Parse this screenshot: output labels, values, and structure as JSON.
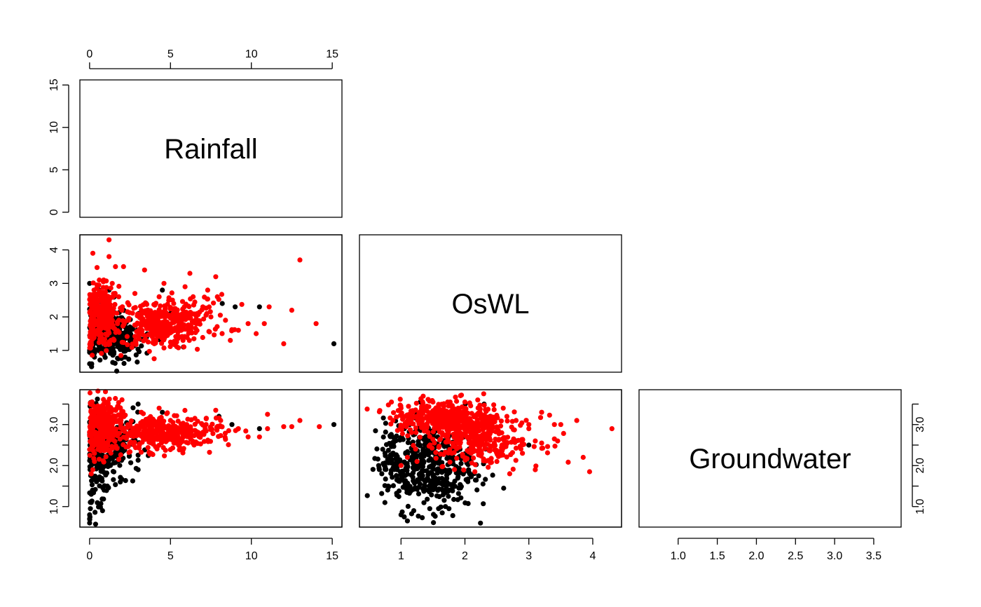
{
  "chart_data": {
    "type": "scatter",
    "variables": [
      "Rainfall",
      "OsWL",
      "Groundwater"
    ],
    "series_colors": {
      "black_group": "#000000",
      "red_group": "#ff0000"
    },
    "axes": {
      "Rainfall": {
        "lim": [
          -0.6,
          15.6
        ],
        "ticks": [
          0,
          5,
          10,
          15
        ],
        "tick_labels": [
          "0",
          "5",
          "10",
          "15"
        ]
      },
      "OsWL": {
        "lim": [
          0.35,
          4.45
        ],
        "ticks": [
          1,
          2,
          3,
          4
        ],
        "tick_labels": [
          "1",
          "2",
          "3",
          "4"
        ]
      },
      "Groundwater": {
        "lim": [
          0.5,
          3.85
        ],
        "ticks": [
          1.0,
          1.5,
          2.0,
          2.5,
          3.0,
          3.5
        ],
        "tick_labels": [
          "1.0",
          "1.5",
          "2.0",
          "2.5",
          "3.0",
          "3.5"
        ],
        "major_ticks": [
          1.0,
          2.0,
          3.0
        ],
        "major_tick_labels": [
          "1.0",
          "2.0",
          "3.0"
        ]
      }
    },
    "panels": [
      {
        "x": "Rainfall",
        "y": "OsWL",
        "points": [
          [
            0,
            0.6,
            "k"
          ],
          [
            0,
            1.0,
            "k"
          ],
          [
            0.1,
            1.4,
            "k"
          ],
          [
            0.2,
            1.8,
            "k"
          ],
          [
            0.3,
            2.2,
            "k"
          ],
          [
            0.1,
            2.6,
            "k"
          ],
          [
            0,
            3.0,
            "k"
          ],
          [
            0.5,
            1.2,
            "k"
          ],
          [
            0.8,
            1.0,
            "k"
          ],
          [
            1.0,
            1.3,
            "k"
          ],
          [
            1.2,
            1.6,
            "k"
          ],
          [
            1.5,
            0.9,
            "k"
          ],
          [
            1.8,
            1.1,
            "k"
          ],
          [
            2.0,
            1.4,
            "k"
          ],
          [
            0.6,
            2.8,
            "k"
          ],
          [
            1.2,
            2.8,
            "k"
          ],
          [
            2.2,
            0.8,
            "k"
          ],
          [
            2.5,
            1.7,
            "k"
          ],
          [
            0.3,
            0.8,
            "k"
          ],
          [
            0.7,
            1.7,
            "k"
          ],
          [
            1.6,
            1.9,
            "k"
          ],
          [
            3.5,
            2.4,
            "k"
          ],
          [
            4.5,
            2.8,
            "k"
          ],
          [
            5.0,
            2.1,
            "k"
          ],
          [
            5.8,
            1.1,
            "k"
          ],
          [
            8.2,
            2.4,
            "k"
          ],
          [
            9.0,
            2.3,
            "k"
          ],
          [
            10.5,
            2.3,
            "k"
          ],
          [
            15.1,
            1.2,
            "k"
          ],
          [
            0.9,
            2.1,
            "k"
          ],
          [
            0.2,
            3.9,
            "r"
          ],
          [
            1.2,
            4.3,
            "r"
          ],
          [
            1.2,
            3.8,
            "r"
          ],
          [
            1.6,
            3.5,
            "r"
          ],
          [
            2.1,
            3.5,
            "r"
          ],
          [
            0.6,
            3.1,
            "r"
          ],
          [
            0.9,
            2.7,
            "r"
          ],
          [
            1.4,
            3.0,
            "r"
          ],
          [
            1.8,
            2.6,
            "r"
          ],
          [
            0.4,
            2.3,
            "r"
          ],
          [
            0.7,
            2.0,
            "r"
          ],
          [
            1.1,
            1.7,
            "r"
          ],
          [
            0.5,
            1.5,
            "r"
          ],
          [
            1.5,
            1.3,
            "r"
          ],
          [
            2.0,
            2.2,
            "r"
          ],
          [
            2.4,
            1.9,
            "r"
          ],
          [
            3.4,
            3.4,
            "r"
          ],
          [
            3.2,
            2.2,
            "r"
          ],
          [
            3.6,
            1.9,
            "r"
          ],
          [
            3.8,
            1.5,
            "r"
          ],
          [
            4.0,
            1.2,
            "r"
          ],
          [
            4.3,
            2.6,
            "r"
          ],
          [
            4.6,
            3.0,
            "r"
          ],
          [
            4.8,
            1.7,
            "r"
          ],
          [
            5.2,
            2.4,
            "r"
          ],
          [
            5.4,
            1.4,
            "r"
          ],
          [
            5.6,
            2.0,
            "r"
          ],
          [
            6.2,
            3.3,
            "r"
          ],
          [
            6.4,
            2.6,
            "r"
          ],
          [
            6.6,
            1.8,
            "r"
          ],
          [
            7.0,
            2.3,
            "r"
          ],
          [
            7.3,
            2.8,
            "r"
          ],
          [
            7.5,
            2.0,
            "r"
          ],
          [
            7.8,
            3.2,
            "r"
          ],
          [
            7.9,
            2.6,
            "r"
          ],
          [
            8.4,
            1.9,
            "r"
          ],
          [
            8.7,
            1.3,
            "r"
          ],
          [
            9.2,
            1.6,
            "r"
          ],
          [
            9.8,
            1.8,
            "r"
          ],
          [
            10.3,
            1.5,
            "r"
          ],
          [
            10.8,
            1.8,
            "r"
          ],
          [
            11.1,
            2.3,
            "r"
          ],
          [
            12.0,
            1.2,
            "r"
          ],
          [
            12.5,
            2.2,
            "r"
          ],
          [
            13.0,
            3.7,
            "r"
          ],
          [
            14.0,
            1.8,
            "r"
          ],
          [
            2.8,
            2.7,
            "r"
          ],
          [
            5.9,
            2.9,
            "r"
          ]
        ],
        "clusters": [
          {
            "color": "k",
            "cx": 0.9,
            "cy": 1.55,
            "sx": 0.75,
            "sy": 0.45,
            "n": 220
          },
          {
            "color": "k",
            "cx": 2.4,
            "cy": 1.4,
            "sx": 0.7,
            "sy": 0.3,
            "n": 80
          },
          {
            "color": "r",
            "cx": 0.7,
            "cy": 2.0,
            "sx": 0.55,
            "sy": 0.45,
            "n": 300
          },
          {
            "color": "r",
            "cx": 4.2,
            "cy": 1.75,
            "sx": 1.1,
            "sy": 0.35,
            "n": 280
          },
          {
            "color": "r",
            "cx": 6.0,
            "cy": 1.95,
            "sx": 1.3,
            "sy": 0.35,
            "n": 100
          }
        ]
      },
      {
        "x": "Rainfall",
        "y": "Groundwater",
        "points": [
          [
            0,
            0.6,
            "k"
          ],
          [
            0,
            0.7,
            "k"
          ],
          [
            0,
            0.8,
            "k"
          ],
          [
            0.05,
            0.95,
            "k"
          ],
          [
            0.1,
            1.1,
            "k"
          ],
          [
            0.1,
            1.3,
            "k"
          ],
          [
            0.8,
            0.9,
            "k"
          ],
          [
            0.9,
            1.4,
            "k"
          ],
          [
            1.1,
            1.5,
            "k"
          ],
          [
            1.9,
            1.6,
            "k"
          ],
          [
            3.0,
            3.5,
            "k"
          ],
          [
            3.0,
            1.9,
            "k"
          ],
          [
            4.5,
            3.3,
            "k"
          ],
          [
            8.0,
            3.2,
            "k"
          ],
          [
            8.8,
            3.0,
            "k"
          ],
          [
            10.5,
            2.9,
            "k"
          ],
          [
            15.1,
            3.0,
            "k"
          ],
          [
            0.1,
            3.5,
            "r"
          ],
          [
            0.5,
            3.4,
            "r"
          ],
          [
            1.0,
            3.55,
            "r"
          ],
          [
            1.3,
            3.3,
            "r"
          ],
          [
            2.0,
            3.2,
            "r"
          ],
          [
            2.5,
            3.0,
            "r"
          ],
          [
            3.2,
            3.3,
            "r"
          ],
          [
            4.3,
            3.4,
            "r"
          ],
          [
            5.0,
            3.1,
            "r"
          ],
          [
            6.0,
            3.0,
            "r"
          ],
          [
            6.7,
            2.8,
            "r"
          ],
          [
            7.2,
            3.0,
            "r"
          ],
          [
            7.8,
            3.35,
            "r"
          ],
          [
            8.1,
            3.1,
            "r"
          ],
          [
            9.2,
            2.9,
            "r"
          ],
          [
            9.8,
            2.7,
            "r"
          ],
          [
            10.5,
            2.7,
            "r"
          ],
          [
            11.0,
            2.9,
            "r"
          ],
          [
            11.0,
            3.25,
            "r"
          ],
          [
            12.0,
            2.95,
            "r"
          ],
          [
            12.5,
            2.95,
            "r"
          ],
          [
            13.0,
            3.1,
            "r"
          ],
          [
            14.2,
            2.95,
            "r"
          ],
          [
            0.2,
            1.9,
            "r"
          ],
          [
            0.3,
            2.1,
            "r"
          ],
          [
            0.1,
            1.8,
            "r"
          ],
          [
            3.8,
            2.3,
            "r"
          ],
          [
            5.5,
            2.5,
            "r"
          ],
          [
            8.6,
            2.85,
            "r"
          ]
        ],
        "clusters": [
          {
            "color": "k",
            "cx": 0.6,
            "cy": 2.3,
            "sx": 0.5,
            "sy": 0.55,
            "n": 220
          },
          {
            "color": "k",
            "cx": 2.0,
            "cy": 2.5,
            "sx": 0.6,
            "sy": 0.35,
            "n": 90
          },
          {
            "color": "r",
            "cx": 0.8,
            "cy": 2.9,
            "sx": 0.6,
            "sy": 0.35,
            "n": 320
          },
          {
            "color": "r",
            "cx": 4.3,
            "cy": 2.8,
            "sx": 1.1,
            "sy": 0.22,
            "n": 260
          },
          {
            "color": "r",
            "cx": 6.5,
            "cy": 2.85,
            "sx": 1.2,
            "sy": 0.2,
            "n": 90
          }
        ]
      },
      {
        "x": "OsWL",
        "y": "Groundwater",
        "points": [
          [
            0.65,
            2.0,
            "k"
          ],
          [
            0.7,
            1.8,
            "k"
          ],
          [
            0.75,
            2.3,
            "k"
          ],
          [
            0.8,
            1.5,
            "k"
          ],
          [
            0.85,
            2.5,
            "k"
          ],
          [
            1.0,
            0.8,
            "k"
          ],
          [
            1.05,
            0.75,
            "k"
          ],
          [
            1.1,
            0.65,
            "k"
          ],
          [
            1.2,
            0.9,
            "k"
          ],
          [
            1.45,
            0.95,
            "k"
          ],
          [
            1.75,
            0.95,
            "k"
          ],
          [
            1.3,
            3.55,
            "k"
          ],
          [
            2.3,
            3.5,
            "k"
          ],
          [
            2.4,
            3.2,
            "k"
          ],
          [
            2.8,
            2.6,
            "k"
          ],
          [
            3.0,
            2.5,
            "k"
          ],
          [
            0.85,
            3.55,
            "r"
          ],
          [
            1.0,
            3.4,
            "r"
          ],
          [
            1.5,
            3.55,
            "r"
          ],
          [
            2.0,
            3.55,
            "r"
          ],
          [
            2.2,
            3.6,
            "r"
          ],
          [
            2.6,
            3.4,
            "r"
          ],
          [
            2.8,
            3.1,
            "r"
          ],
          [
            3.0,
            3.0,
            "r"
          ],
          [
            3.2,
            3.3,
            "r"
          ],
          [
            3.4,
            3.0,
            "r"
          ],
          [
            3.5,
            3.0,
            "r"
          ],
          [
            3.75,
            3.1,
            "r"
          ],
          [
            4.3,
            2.9,
            "r"
          ],
          [
            3.0,
            2.9,
            "r"
          ],
          [
            3.1,
            2.6,
            "r"
          ],
          [
            3.2,
            2.55,
            "r"
          ],
          [
            3.4,
            2.65,
            "r"
          ],
          [
            3.45,
            2.6,
            "r"
          ],
          [
            3.85,
            2.2,
            "r"
          ],
          [
            3.95,
            1.85,
            "r"
          ],
          [
            3.1,
            1.9,
            "r"
          ],
          [
            2.7,
            1.8,
            "r"
          ],
          [
            2.5,
            2.1,
            "r"
          ],
          [
            2.9,
            2.3,
            "r"
          ],
          [
            1.0,
            2.0,
            "r"
          ],
          [
            1.1,
            2.2,
            "r"
          ],
          [
            1.25,
            2.1,
            "r"
          ]
        ],
        "clusters": [
          {
            "color": "k",
            "cx": 1.45,
            "cy": 2.0,
            "sx": 0.35,
            "sy": 0.55,
            "n": 420
          },
          {
            "color": "k",
            "cx": 1.0,
            "cy": 2.1,
            "sx": 0.2,
            "sy": 0.4,
            "n": 90
          },
          {
            "color": "r",
            "cx": 1.5,
            "cy": 3.2,
            "sx": 0.35,
            "sy": 0.2,
            "n": 220
          },
          {
            "color": "r",
            "cx": 2.05,
            "cy": 2.8,
            "sx": 0.3,
            "sy": 0.35,
            "n": 300
          },
          {
            "color": "r",
            "cx": 2.5,
            "cy": 2.6,
            "sx": 0.35,
            "sy": 0.3,
            "n": 120
          }
        ]
      }
    ],
    "grid": false,
    "legend": "none"
  }
}
